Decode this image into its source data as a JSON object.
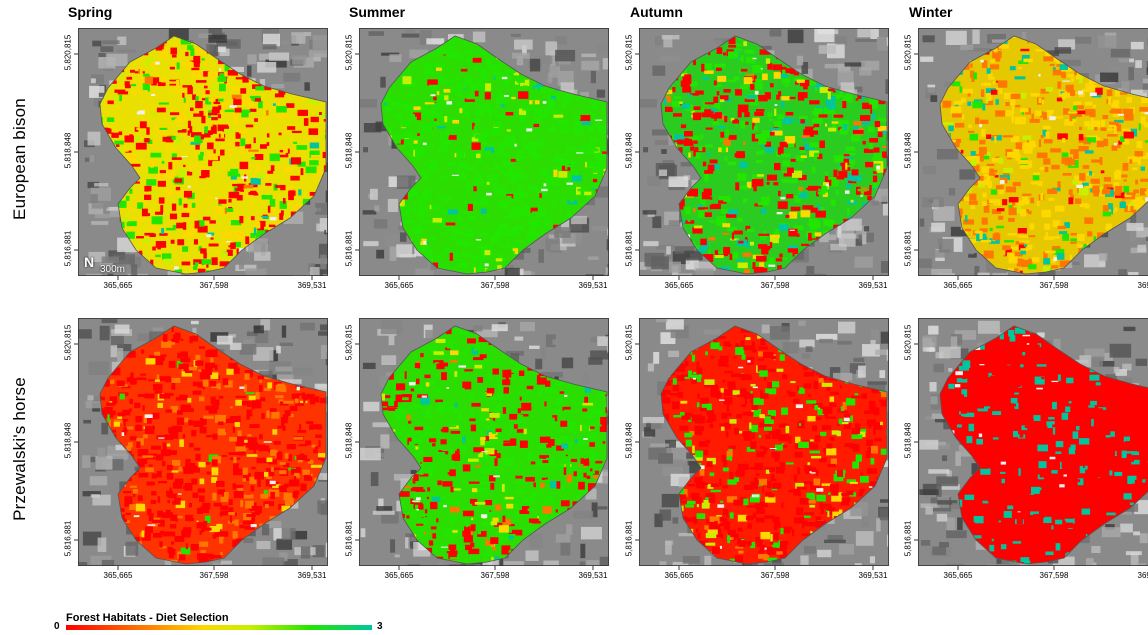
{
  "rows": [
    {
      "label": "European bison",
      "key": "bison"
    },
    {
      "label": "Przewalski's horse",
      "key": "horse"
    }
  ],
  "seasons": [
    "Spring",
    "Summer",
    "Autumn",
    "Winter"
  ],
  "axes": {
    "y_ticks": [
      "5,820,815",
      "5,818,848",
      "5,816,881"
    ],
    "x_ticks": [
      "365,665",
      "367,598",
      "369,531"
    ]
  },
  "scale_bar": "300m",
  "north_arrow": "N",
  "legend": {
    "title": "Forest Habitats - Diet Selection",
    "min": "0",
    "max": "3",
    "colors": [
      "#ff0000",
      "#ff7700",
      "#ffd800",
      "#c8ee00",
      "#22e600",
      "#00c6a0"
    ]
  },
  "map_palettes": {
    "bison": [
      {
        "base": "#e9e000",
        "weights": [
          0.45,
          0.02,
          0.25,
          0.05,
          0.2,
          0.03
        ]
      },
      {
        "base": "#2bdd00",
        "weights": [
          0.08,
          0.0,
          0.03,
          0.06,
          0.8,
          0.03
        ]
      },
      {
        "base": "#2bcc20",
        "weights": [
          0.45,
          0.03,
          0.05,
          0.05,
          0.3,
          0.12
        ]
      },
      {
        "base": "#e6c800",
        "weights": [
          0.03,
          0.35,
          0.4,
          0.05,
          0.07,
          0.1
        ]
      }
    ],
    "horse": [
      {
        "base": "#ff3300",
        "weights": [
          0.7,
          0.22,
          0.06,
          0.0,
          0.02,
          0.0
        ]
      },
      {
        "base": "#2bdd00",
        "weights": [
          0.35,
          0.03,
          0.04,
          0.05,
          0.5,
          0.03
        ]
      },
      {
        "base": "#ff1a00",
        "weights": [
          0.65,
          0.05,
          0.05,
          0.05,
          0.2,
          0.0
        ]
      },
      {
        "base": "#ff0000",
        "weights": [
          0.78,
          0.0,
          0.0,
          0.0,
          0.0,
          0.22
        ]
      }
    ]
  }
}
